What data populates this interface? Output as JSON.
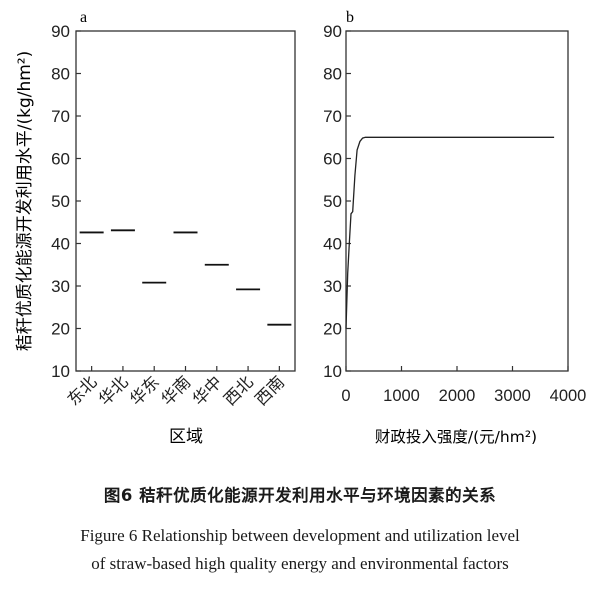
{
  "chart_data": [
    {
      "panel": "a",
      "type": "scatter",
      "marker": "horizontal-dash",
      "xlabel": "区域",
      "ylabel": "秸秆优质化能源开发利用水平/(kg/hm²)",
      "categories": [
        "东北",
        "华北",
        "华东",
        "华南",
        "华中",
        "西北",
        "西南"
      ],
      "values": [
        42.6,
        43.1,
        30.8,
        42.6,
        35.0,
        29.2,
        20.9
      ],
      "ylim": [
        10,
        90
      ],
      "yticks": [
        "10",
        "20",
        "30",
        "40",
        "50",
        "60",
        "70",
        "80",
        "90"
      ],
      "grid": false
    },
    {
      "panel": "b",
      "type": "line",
      "xlabel": "财政投入强度/(元/hm²)",
      "xlim": [
        0,
        4000
      ],
      "ylim": [
        10,
        90
      ],
      "xticks": [
        "0",
        "1000",
        "2000",
        "3000",
        "4000"
      ],
      "yticks": [
        "10",
        "20",
        "30",
        "40",
        "50",
        "60",
        "70",
        "80",
        "90"
      ],
      "x": [
        0,
        30,
        60,
        90,
        120,
        160,
        200,
        250,
        300,
        350,
        450,
        1000,
        2000,
        3000,
        3750
      ],
      "y": [
        20,
        33,
        40,
        47,
        47.5,
        56,
        62,
        64,
        64.8,
        65,
        65,
        65,
        65,
        65,
        65
      ],
      "grid": false
    }
  ],
  "caption": {
    "zh": "图6 秸秆优质化能源开发利用水平与环境因素的关系",
    "en_line1": "Figure 6 Relationship between development and utilization level",
    "en_line2": "of straw-based high quality energy and environmental factors"
  }
}
